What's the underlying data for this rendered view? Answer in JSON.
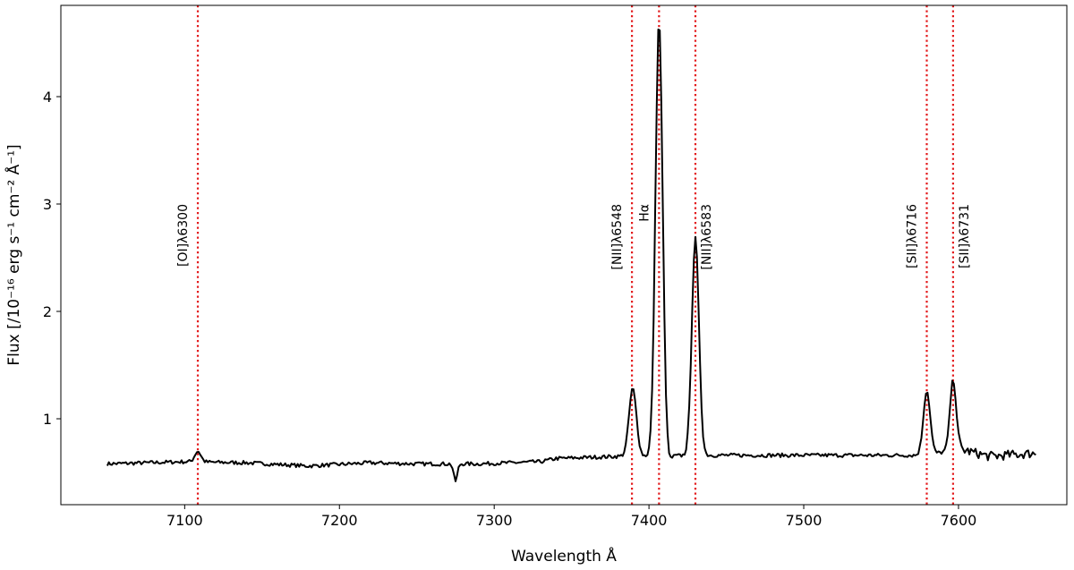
{
  "chart_data": {
    "type": "line",
    "title": "",
    "xlabel": "Wavelength Å",
    "ylabel": "Flux [/10⁻¹⁶ erg s⁻¹ cm⁻² Å⁻¹]",
    "xlim": [
      7020,
      7670
    ],
    "ylim": [
      0.2,
      4.85
    ],
    "xticks": [
      7100,
      7200,
      7300,
      7400,
      7500,
      7600
    ],
    "yticks": [
      1,
      2,
      3,
      4
    ],
    "grid": false,
    "legend": "none",
    "series": [
      {
        "color": "#000000",
        "continuum": [
          [
            7050,
            0.58
          ],
          [
            7100,
            0.6
          ],
          [
            7140,
            0.59
          ],
          [
            7180,
            0.56
          ],
          [
            7220,
            0.59
          ],
          [
            7250,
            0.58
          ],
          [
            7290,
            0.58
          ],
          [
            7330,
            0.6
          ],
          [
            7340,
            0.63
          ],
          [
            7380,
            0.65
          ],
          [
            7440,
            0.66
          ],
          [
            7560,
            0.66
          ],
          [
            7580,
            0.66
          ],
          [
            7600,
            0.72
          ],
          [
            7620,
            0.65
          ],
          [
            7650,
            0.68
          ]
        ],
        "peaks": [
          {
            "x": 7108.5,
            "amp": 0.1,
            "sigma": 2.0
          },
          {
            "x": 7389.5,
            "amp": 0.63,
            "sigma": 2.4
          },
          {
            "x": 7406.5,
            "amp": 4.06,
            "sigma": 2.3
          },
          {
            "x": 7430.0,
            "amp": 2.02,
            "sigma": 2.3
          },
          {
            "x": 7579.5,
            "amp": 0.6,
            "sigma": 2.2
          },
          {
            "x": 7596.5,
            "amp": 0.65,
            "sigma": 2.0
          }
        ],
        "dips": [
          {
            "x": 7275,
            "amp": 0.16,
            "sigma": 1.2
          },
          {
            "x": 7413,
            "amp": 0.05,
            "sigma": 1.5
          }
        ]
      }
    ],
    "emission_lines": [
      {
        "label": "[OI]λ6300",
        "x": 7108.5,
        "label_side": "left"
      },
      {
        "label": "[NII]λ6548",
        "x": 7389.0,
        "label_side": "left"
      },
      {
        "label": "Hα",
        "x": 7406.5,
        "label_side": "left"
      },
      {
        "label": "[NII]λ6583",
        "x": 7430.0,
        "label_side": "right"
      },
      {
        "label": "[SII]λ6716",
        "x": 7579.5,
        "label_side": "left"
      },
      {
        "label": "[SII]λ6731",
        "x": 7596.5,
        "label_side": "right"
      }
    ],
    "marker_color": "#e31a1c"
  }
}
